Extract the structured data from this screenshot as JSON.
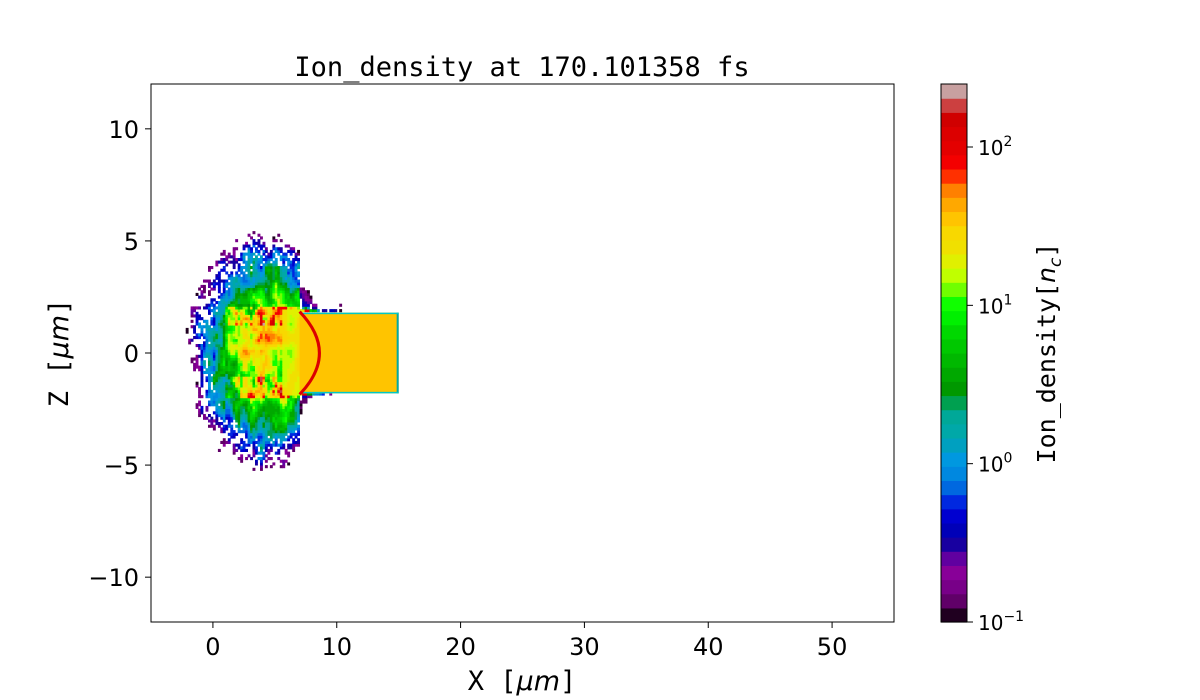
{
  "chart_data": {
    "type": "heatmap",
    "title": "Ion_density at 170.101358 fs",
    "xlabel": "X [μm]",
    "xlabel_parts": {
      "var": "X",
      "unit": "μm"
    },
    "ylabel": "Z [μm]",
    "ylabel_parts": {
      "var": "Z",
      "unit": "μm"
    },
    "xlim": [
      -5,
      55
    ],
    "ylim": [
      -12,
      12
    ],
    "xticks": [
      0,
      10,
      20,
      30,
      40,
      50
    ],
    "xtick_labels": [
      "0",
      "10",
      "20",
      "30",
      "40",
      "50"
    ],
    "yticks": [
      10,
      5,
      0,
      -5,
      -10
    ],
    "ytick_labels": [
      "10",
      "5",
      "0",
      "−5",
      "−10"
    ],
    "grid": false,
    "colorbar": {
      "label": "Ion_density[n_c]",
      "label_parts": {
        "base": "Ion_density",
        "var": "n",
        "sub": "c"
      },
      "scale": "log",
      "range": [
        0.1,
        250
      ],
      "ticks": [
        0.1,
        1,
        10,
        100
      ],
      "tick_labels": [
        {
          "base": "10",
          "exp": "−1"
        },
        {
          "base": "10",
          "exp": "0"
        },
        {
          "base": "10",
          "exp": "1"
        },
        {
          "base": "10",
          "exp": "2"
        }
      ],
      "position": "right",
      "colors": [
        "#200020",
        "#600068",
        "#780088",
        "#880098",
        "#6000a0",
        "#1800a0",
        "#0000b8",
        "#0000d0",
        "#0028e0",
        "#0068e0",
        "#0088e0",
        "#0098e0",
        "#00a0c0",
        "#00a8a8",
        "#00a898",
        "#00a050",
        "#009800",
        "#00a800",
        "#00b800",
        "#00c800",
        "#00d800",
        "#00f000",
        "#10ff00",
        "#70ff00",
        "#c0ff00",
        "#e0f000",
        "#f0e000",
        "#f8d800",
        "#ffc400",
        "#ffa800",
        "#ff8000",
        "#ff3000",
        "#f40000",
        "#e40000",
        "#dc0000",
        "#d00000",
        "#cc4040",
        "#c8a0a0"
      ]
    },
    "features": {
      "target": {
        "x": [
          7,
          15
        ],
        "z": [
          -1.8,
          1.8
        ],
        "density": 35
      },
      "plasma_extent": {
        "x": [
          -2.5,
          10
        ],
        "z": [
          -5.5,
          5.5
        ]
      }
    }
  }
}
